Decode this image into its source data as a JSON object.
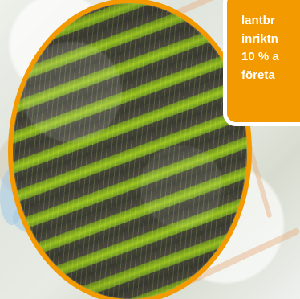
{
  "callout": {
    "lines": [
      "lantbr",
      "inriktn",
      "10 % a",
      "företa"
    ]
  },
  "colors": {
    "accent": "#f29a00",
    "text": "#ffffff"
  }
}
